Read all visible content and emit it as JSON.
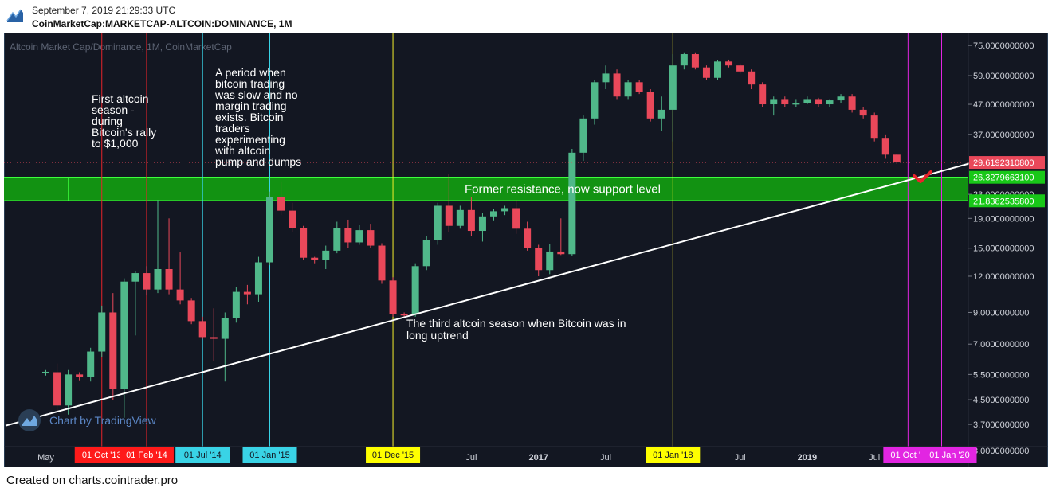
{
  "header": {
    "date": "September 7, 2019 21:29:33 UTC",
    "symbol": "CoinMarketCap:MARKETCAP-ALTCOIN:DOMINANCE, 1M"
  },
  "footer": {
    "text": "Created on charts.cointrader.pro"
  },
  "colors": {
    "background": "#131722",
    "up": "#50b88a",
    "down": "#e9485a",
    "support_zone": "#129912",
    "support_border": "#3cff3c",
    "trendline": "#ffffff",
    "vline_red": "#e8232b",
    "vline_cyan": "#39d3e6",
    "vline_yellow": "#f4ee2c",
    "vline_magenta": "#e225e2"
  },
  "chart_data": {
    "type": "candlestick",
    "title": "Altcoin Market Cap/Dominance, 1M, CoinMarketCap",
    "y_scale": "log",
    "ylim": [
      2.75,
      82
    ],
    "y_ticks": [
      3,
      3.7,
      4.5,
      5.5,
      7,
      9,
      12,
      15,
      19,
      23,
      37,
      47,
      59,
      75
    ],
    "y_tick_labels": [
      "3.0000000000",
      "3.7000000000",
      "4.5000000000",
      "5.5000000000",
      "7.0000000000",
      "9.0000000000",
      "12.0000000000",
      "15.0000000000",
      "19.0000000000",
      "23.0000000000",
      "37.0000000000",
      "47.0000000000",
      "59.0000000000",
      "75.0000000000"
    ],
    "x_labels": [
      {
        "label": "May",
        "date": "2013-05"
      },
      {
        "label": "Jul",
        "date": "2014-07"
      },
      {
        "label": "Jul",
        "date": "2016-07"
      },
      {
        "label": "2017",
        "date": "2017-01"
      },
      {
        "label": "Jul",
        "date": "2017-07"
      },
      {
        "label": "Jul",
        "date": "2018-07"
      },
      {
        "label": "2019",
        "date": "2019-01"
      },
      {
        "label": "Jul",
        "date": "2019-07"
      }
    ],
    "highlight_dates": [
      {
        "label": "01 Oct '13",
        "date": "2013-10",
        "color": "red"
      },
      {
        "label": "01 Feb '14",
        "date": "2014-02",
        "color": "red"
      },
      {
        "label": "01 Jul '14",
        "date": "2014-07",
        "color": "cyan"
      },
      {
        "label": "01 Jan '15",
        "date": "2015-01",
        "color": "cyan"
      },
      {
        "label": "01 Dec '15",
        "date": "2015-12",
        "color": "yellow"
      },
      {
        "label": "01 Jan '18",
        "date": "2018-01",
        "color": "yellow"
      },
      {
        "label": "01 Oct '",
        "date": "2019-10",
        "color": "magenta"
      },
      {
        "label": "01 Jan '20",
        "date": "2020-01",
        "color": "magenta"
      }
    ],
    "price_labels": [
      {
        "value": 29.61923108,
        "label": "29.6192310800",
        "color": "red"
      },
      {
        "value": 26.32796631,
        "label": "26.3279663100",
        "color": "green"
      },
      {
        "value": 21.83825358,
        "label": "21.8382535800",
        "color": "green"
      }
    ],
    "support_zone": {
      "low": 21.83825358,
      "high": 26.32796631,
      "label": "Former resistance, now support level"
    },
    "trendline": {
      "from": {
        "date": "2013-04",
        "value": 3.9
      },
      "to": {
        "date": "2019-12",
        "value": 27.0
      }
    },
    "annotations": [
      {
        "text": [
          "First altcoin",
          "season -",
          "during",
          "Bitcoin's rally",
          "to $1,000"
        ]
      },
      {
        "text": [
          "A period when",
          "bitcoin trading",
          "was slow and no",
          "margin trading",
          "exists. Bitcoin",
          "traders",
          "experimenting",
          "with altcoin",
          "pump and dumps"
        ]
      },
      {
        "text": [
          "The third altcoin season when Bitcoin was in",
          "long uptrend"
        ]
      }
    ],
    "watermark": "Chart by TradingView",
    "candles": [
      {
        "date": "2013-05",
        "o": 5.55,
        "h": 5.7,
        "l": 5.45,
        "c": 5.62
      },
      {
        "date": "2013-06",
        "o": 5.6,
        "h": 6.0,
        "l": 4.1,
        "c": 4.3
      },
      {
        "date": "2013-07",
        "o": 4.3,
        "h": 5.7,
        "l": 4.0,
        "c": 5.5
      },
      {
        "date": "2013-08",
        "o": 5.5,
        "h": 5.6,
        "l": 5.25,
        "c": 5.4
      },
      {
        "date": "2013-09",
        "o": 5.4,
        "h": 6.8,
        "l": 5.2,
        "c": 6.6
      },
      {
        "date": "2013-10",
        "o": 6.6,
        "h": 9.5,
        "l": 6.3,
        "c": 9.0
      },
      {
        "date": "2013-11",
        "o": 9.0,
        "h": 10.5,
        "l": 4.5,
        "c": 4.9
      },
      {
        "date": "2013-12",
        "o": 4.9,
        "h": 11.8,
        "l": 3.9,
        "c": 11.5
      },
      {
        "date": "2014-01",
        "o": 11.5,
        "h": 12.5,
        "l": 7.5,
        "c": 12.3
      },
      {
        "date": "2014-02",
        "o": 12.3,
        "h": 13.0,
        "l": 10.3,
        "c": 10.8
      },
      {
        "date": "2014-03",
        "o": 10.8,
        "h": 22.0,
        "l": 10.5,
        "c": 12.7
      },
      {
        "date": "2014-04",
        "o": 12.7,
        "h": 19.0,
        "l": 10.4,
        "c": 10.8
      },
      {
        "date": "2014-05",
        "o": 10.8,
        "h": 14.5,
        "l": 9.6,
        "c": 9.9
      },
      {
        "date": "2014-06",
        "o": 9.9,
        "h": 10.1,
        "l": 8.2,
        "c": 8.4
      },
      {
        "date": "2014-07",
        "o": 8.4,
        "h": 8.7,
        "l": 7.3,
        "c": 7.4
      },
      {
        "date": "2014-08",
        "o": 7.4,
        "h": 9.3,
        "l": 6.1,
        "c": 7.3
      },
      {
        "date": "2014-09",
        "o": 7.3,
        "h": 9.0,
        "l": 5.2,
        "c": 8.6
      },
      {
        "date": "2014-10",
        "o": 8.6,
        "h": 11.0,
        "l": 8.3,
        "c": 10.6
      },
      {
        "date": "2014-11",
        "o": 10.6,
        "h": 11.2,
        "l": 9.6,
        "c": 10.4
      },
      {
        "date": "2014-12",
        "o": 10.4,
        "h": 14.0,
        "l": 9.8,
        "c": 13.4
      },
      {
        "date": "2015-01",
        "o": 13.4,
        "h": 23.5,
        "l": 13.1,
        "c": 22.5
      },
      {
        "date": "2015-02",
        "o": 22.5,
        "h": 25.5,
        "l": 19.5,
        "c": 20.2
      },
      {
        "date": "2015-03",
        "o": 20.2,
        "h": 21.5,
        "l": 17.0,
        "c": 17.6
      },
      {
        "date": "2015-04",
        "o": 17.6,
        "h": 17.9,
        "l": 13.7,
        "c": 13.9
      },
      {
        "date": "2015-05",
        "o": 13.9,
        "h": 14.0,
        "l": 13.3,
        "c": 13.7
      },
      {
        "date": "2015-06",
        "o": 13.7,
        "h": 15.3,
        "l": 12.7,
        "c": 14.7
      },
      {
        "date": "2015-07",
        "o": 14.7,
        "h": 18.5,
        "l": 14.4,
        "c": 17.6
      },
      {
        "date": "2015-08",
        "o": 17.6,
        "h": 18.8,
        "l": 15.0,
        "c": 15.7
      },
      {
        "date": "2015-09",
        "o": 15.7,
        "h": 18.0,
        "l": 15.4,
        "c": 17.3
      },
      {
        "date": "2015-10",
        "o": 17.3,
        "h": 18.2,
        "l": 15.0,
        "c": 15.3
      },
      {
        "date": "2015-11",
        "o": 15.3,
        "h": 15.6,
        "l": 11.3,
        "c": 11.6
      },
      {
        "date": "2015-12",
        "o": 11.6,
        "h": 11.9,
        "l": 8.7,
        "c": 8.9
      },
      {
        "date": "2016-01",
        "o": 8.9,
        "h": 9.0,
        "l": 8.7,
        "c": 8.85
      },
      {
        "date": "2016-02",
        "o": 8.85,
        "h": 13.3,
        "l": 8.7,
        "c": 13.0
      },
      {
        "date": "2016-03",
        "o": 13.0,
        "h": 16.5,
        "l": 12.6,
        "c": 16.0
      },
      {
        "date": "2016-04",
        "o": 16.0,
        "h": 21.5,
        "l": 15.4,
        "c": 21.0
      },
      {
        "date": "2016-05",
        "o": 21.0,
        "h": 27.0,
        "l": 17.0,
        "c": 17.9
      },
      {
        "date": "2016-06",
        "o": 17.9,
        "h": 21.0,
        "l": 17.5,
        "c": 20.3
      },
      {
        "date": "2016-07",
        "o": 20.3,
        "h": 22.5,
        "l": 16.5,
        "c": 17.2
      },
      {
        "date": "2016-08",
        "o": 17.2,
        "h": 19.8,
        "l": 15.8,
        "c": 19.3
      },
      {
        "date": "2016-09",
        "o": 19.3,
        "h": 20.5,
        "l": 18.7,
        "c": 20.1
      },
      {
        "date": "2016-10",
        "o": 20.1,
        "h": 21.0,
        "l": 19.5,
        "c": 20.6
      },
      {
        "date": "2016-11",
        "o": 20.6,
        "h": 22.0,
        "l": 16.8,
        "c": 17.5
      },
      {
        "date": "2016-12",
        "o": 17.5,
        "h": 18.5,
        "l": 14.7,
        "c": 15.0
      },
      {
        "date": "2017-01",
        "o": 15.0,
        "h": 15.4,
        "l": 12.0,
        "c": 12.6
      },
      {
        "date": "2017-02",
        "o": 12.6,
        "h": 15.5,
        "l": 12.2,
        "c": 14.6
      },
      {
        "date": "2017-03",
        "o": 14.6,
        "h": 19.0,
        "l": 14.2,
        "c": 14.3
      },
      {
        "date": "2017-04",
        "o": 14.3,
        "h": 33.0,
        "l": 14.1,
        "c": 32.0
      },
      {
        "date": "2017-05",
        "o": 32.0,
        "h": 43.0,
        "l": 30.0,
        "c": 42.0
      },
      {
        "date": "2017-06",
        "o": 42.0,
        "h": 57.0,
        "l": 40.0,
        "c": 56.0
      },
      {
        "date": "2017-07",
        "o": 56.0,
        "h": 64.0,
        "l": 53.0,
        "c": 60.0
      },
      {
        "date": "2017-08",
        "o": 60.0,
        "h": 62.0,
        "l": 49.0,
        "c": 50.0
      },
      {
        "date": "2017-09",
        "o": 50.0,
        "h": 57.0,
        "l": 49.0,
        "c": 56.0
      },
      {
        "date": "2017-10",
        "o": 56.0,
        "h": 57.0,
        "l": 51.0,
        "c": 52.0
      },
      {
        "date": "2017-11",
        "o": 52.0,
        "h": 53.0,
        "l": 41.0,
        "c": 42.0
      },
      {
        "date": "2017-12",
        "o": 42.0,
        "h": 50.0,
        "l": 38.0,
        "c": 45.0
      },
      {
        "date": "2018-01",
        "o": 45.0,
        "h": 70.0,
        "l": 35.0,
        "c": 64.0
      },
      {
        "date": "2018-02",
        "o": 64.0,
        "h": 71.0,
        "l": 62.0,
        "c": 70.0
      },
      {
        "date": "2018-03",
        "o": 70.0,
        "h": 71.0,
        "l": 62.0,
        "c": 63.0
      },
      {
        "date": "2018-04",
        "o": 63.0,
        "h": 64.0,
        "l": 57.0,
        "c": 58.0
      },
      {
        "date": "2018-05",
        "o": 58.0,
        "h": 67.0,
        "l": 57.0,
        "c": 66.0
      },
      {
        "date": "2018-06",
        "o": 66.0,
        "h": 67.0,
        "l": 63.0,
        "c": 64.0
      },
      {
        "date": "2018-07",
        "o": 64.0,
        "h": 65.0,
        "l": 60.0,
        "c": 61.0
      },
      {
        "date": "2018-08",
        "o": 61.0,
        "h": 62.0,
        "l": 53.0,
        "c": 55.0
      },
      {
        "date": "2018-09",
        "o": 55.0,
        "h": 56.0,
        "l": 46.0,
        "c": 47.0
      },
      {
        "date": "2018-10",
        "o": 47.0,
        "h": 50.0,
        "l": 43.0,
        "c": 49.0
      },
      {
        "date": "2018-11",
        "o": 49.0,
        "h": 50.0,
        "l": 46.0,
        "c": 47.0
      },
      {
        "date": "2018-12",
        "o": 47.0,
        "h": 49.0,
        "l": 46.0,
        "c": 47.5
      },
      {
        "date": "2019-01",
        "o": 47.5,
        "h": 50.0,
        "l": 47.0,
        "c": 49.0
      },
      {
        "date": "2019-02",
        "o": 49.0,
        "h": 49.5,
        "l": 46.0,
        "c": 47.0
      },
      {
        "date": "2019-03",
        "o": 47.0,
        "h": 49.0,
        "l": 46.0,
        "c": 48.5
      },
      {
        "date": "2019-04",
        "o": 48.5,
        "h": 51.0,
        "l": 47.5,
        "c": 50.0
      },
      {
        "date": "2019-05",
        "o": 50.0,
        "h": 51.0,
        "l": 44.0,
        "c": 45.0
      },
      {
        "date": "2019-06",
        "o": 45.0,
        "h": 46.0,
        "l": 42.0,
        "c": 43.0
      },
      {
        "date": "2019-07",
        "o": 43.0,
        "h": 44.0,
        "l": 35.0,
        "c": 36.0
      },
      {
        "date": "2019-08",
        "o": 36.0,
        "h": 37.0,
        "l": 30.5,
        "c": 31.5
      },
      {
        "date": "2019-09",
        "o": 31.5,
        "h": 31.6,
        "l": 29.3,
        "c": 29.62
      }
    ]
  }
}
